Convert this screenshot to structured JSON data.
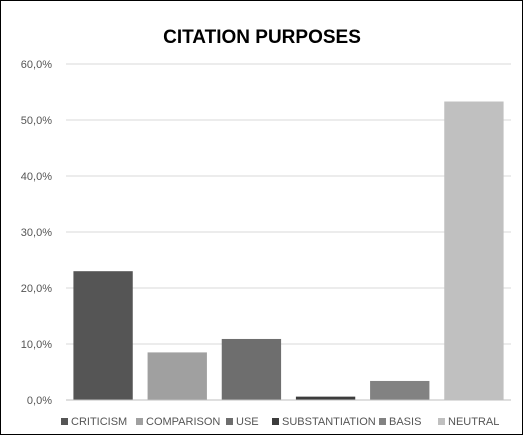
{
  "chart_data": {
    "type": "bar",
    "title": "CITATION PURPOSES",
    "xlabel": "",
    "ylabel": "",
    "categories": [
      "CRITICISM",
      "COMPARISON",
      "USE",
      "SUBSTANTIATION",
      "BASIS",
      "NEUTRAL"
    ],
    "values": [
      23.0,
      8.5,
      10.9,
      0.6,
      3.4,
      53.3
    ],
    "colors": [
      "#555555",
      "#a0a0a0",
      "#6e6e6e",
      "#3c3c3c",
      "#828282",
      "#c0c0c0"
    ],
    "ylim": [
      0,
      60
    ],
    "yticks": [
      0,
      10,
      20,
      30,
      40,
      50,
      60
    ],
    "ytick_labels": [
      "0,0%",
      "10,0%",
      "20,0%",
      "30,0%",
      "40,0%",
      "50,0%",
      "60,0%"
    ],
    "grid": true,
    "legend_position": "bottom",
    "legend": [
      "CRITICISM",
      "COMPARISON",
      "USE",
      "SUBSTANTIATION",
      "BASIS",
      "NEUTRAL"
    ]
  }
}
